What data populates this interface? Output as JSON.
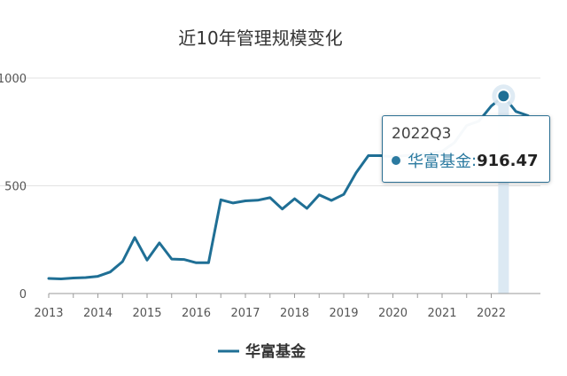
{
  "chart_data": {
    "type": "line",
    "title": "近10年管理规模变化",
    "x_ticks": [
      "2013",
      "2014",
      "2015",
      "2016",
      "2017",
      "2018",
      "2019",
      "2020",
      "2021",
      "2022"
    ],
    "y_ticks": [
      "0",
      "500",
      "1000"
    ],
    "ylim": [
      0,
      1000
    ],
    "x_range": [
      2013.0,
      2022.9
    ],
    "series": [
      {
        "name": "华富基金",
        "color": "#1f6f95",
        "x": [
          2013.0,
          2013.25,
          2013.5,
          2013.75,
          2014.0,
          2014.25,
          2014.5,
          2014.75,
          2015.0,
          2015.25,
          2015.5,
          2015.75,
          2016.0,
          2016.25,
          2016.5,
          2016.75,
          2017.0,
          2017.25,
          2017.5,
          2017.75,
          2018.0,
          2018.25,
          2018.5,
          2018.75,
          2019.0,
          2019.25,
          2019.5,
          2019.75,
          2020.0,
          2020.25,
          2020.5,
          2020.75,
          2021.0,
          2021.25,
          2021.5,
          2021.75,
          2022.0,
          2022.25,
          2022.5,
          2022.75
        ],
        "y": [
          70,
          68,
          72,
          74,
          80,
          100,
          148,
          260,
          155,
          235,
          160,
          158,
          143,
          143,
          435,
          420,
          430,
          433,
          445,
          392,
          440,
          395,
          458,
          432,
          460,
          560,
          640,
          640,
          635,
          640,
          645,
          650,
          660,
          700,
          780,
          800,
          870,
          916.47,
          845,
          825
        ]
      }
    ],
    "highlight": {
      "label": "2022Q3",
      "series_name": "华富基金",
      "value_text": "916.47",
      "x": 2022.25,
      "y": 916.47
    },
    "legend": {
      "position": "bottom",
      "entries": [
        "华富基金"
      ]
    },
    "grid": true
  },
  "colors": {
    "line": "#1f6f95",
    "grid": "#e2e2e2",
    "axis": "#9a9a9a",
    "highlight_band": "#dce9f3"
  }
}
